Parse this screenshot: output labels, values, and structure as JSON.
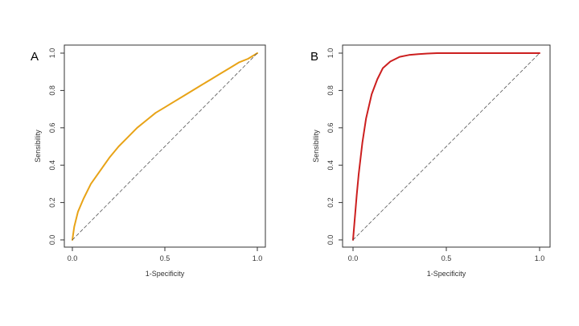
{
  "chart_data": [
    {
      "type": "line",
      "panel_label": "A",
      "xlabel": "1-Specificity",
      "ylabel": "Sensibility",
      "xlim": [
        0,
        1
      ],
      "ylim": [
        0,
        1
      ],
      "x_ticks": [
        0.0,
        0.5,
        1.0
      ],
      "x_tick_labels": [
        "0.0",
        "0.5",
        "1.0"
      ],
      "y_ticks": [
        0.0,
        0.2,
        0.4,
        0.6,
        0.8,
        1.0
      ],
      "y_tick_labels": [
        "0.0",
        "0.2",
        "0.4",
        "0.6",
        "0.8",
        "1.0"
      ],
      "grid": false,
      "series": [
        {
          "name": "ROC curve",
          "color": "#e8a317",
          "x": [
            0.0,
            0.01,
            0.03,
            0.06,
            0.1,
            0.15,
            0.2,
            0.25,
            0.3,
            0.35,
            0.4,
            0.45,
            0.5,
            0.55,
            0.6,
            0.65,
            0.7,
            0.75,
            0.8,
            0.85,
            0.9,
            0.95,
            1.0
          ],
          "y": [
            0.0,
            0.07,
            0.15,
            0.22,
            0.3,
            0.37,
            0.44,
            0.5,
            0.55,
            0.6,
            0.64,
            0.68,
            0.71,
            0.74,
            0.77,
            0.8,
            0.83,
            0.86,
            0.89,
            0.92,
            0.95,
            0.97,
            1.0
          ]
        },
        {
          "name": "Reference diagonal",
          "color": "#555555",
          "dashed": true,
          "x": [
            0.0,
            1.0
          ],
          "y": [
            0.0,
            1.0
          ]
        }
      ]
    },
    {
      "type": "line",
      "panel_label": "B",
      "xlabel": "1-Specificity",
      "ylabel": "Sensibility",
      "xlim": [
        0,
        1
      ],
      "ylim": [
        0,
        1
      ],
      "x_ticks": [
        0.0,
        0.5,
        1.0
      ],
      "x_tick_labels": [
        "0.0",
        "0.5",
        "1.0"
      ],
      "y_ticks": [
        0.0,
        0.2,
        0.4,
        0.6,
        0.8,
        1.0
      ],
      "y_tick_labels": [
        "0.0",
        "0.2",
        "0.4",
        "0.6",
        "0.8",
        "1.0"
      ],
      "grid": false,
      "series": [
        {
          "name": "ROC curve",
          "color": "#cc1f1f",
          "x": [
            0.0,
            0.01,
            0.02,
            0.03,
            0.05,
            0.07,
            0.1,
            0.13,
            0.16,
            0.2,
            0.25,
            0.3,
            0.35,
            0.4,
            0.45,
            0.5,
            0.6,
            0.7,
            0.8,
            0.9,
            1.0
          ],
          "y": [
            0.0,
            0.12,
            0.24,
            0.35,
            0.52,
            0.65,
            0.78,
            0.86,
            0.92,
            0.955,
            0.98,
            0.99,
            0.995,
            0.998,
            1.0,
            1.0,
            1.0,
            1.0,
            1.0,
            1.0,
            1.0
          ]
        },
        {
          "name": "Reference diagonal",
          "color": "#555555",
          "dashed": true,
          "x": [
            0.0,
            1.0
          ],
          "y": [
            0.0,
            1.0
          ]
        }
      ]
    }
  ]
}
